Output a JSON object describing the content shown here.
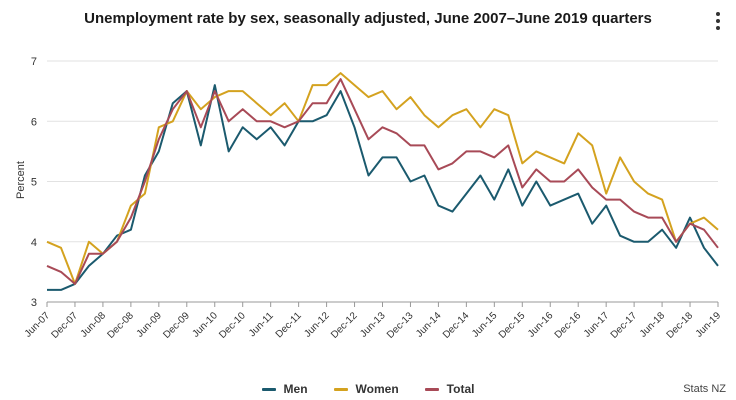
{
  "chart_data": {
    "type": "line",
    "title": "Unemployment rate by sex, seasonally adjusted, June 2007–June 2019 quarters",
    "xlabel": "",
    "ylabel": "Percent",
    "ylim": [
      3,
      7
    ],
    "yticks": [
      3,
      4,
      5,
      6,
      7
    ],
    "grid": true,
    "legend_position": "bottom",
    "x": [
      "Jun-07",
      "Sep-07",
      "Dec-07",
      "Mar-08",
      "Jun-08",
      "Sep-08",
      "Dec-08",
      "Mar-09",
      "Jun-09",
      "Sep-09",
      "Dec-09",
      "Mar-10",
      "Jun-10",
      "Sep-10",
      "Dec-10",
      "Mar-11",
      "Jun-11",
      "Sep-11",
      "Dec-11",
      "Mar-12",
      "Jun-12",
      "Sep-12",
      "Dec-12",
      "Mar-13",
      "Jun-13",
      "Sep-13",
      "Dec-13",
      "Mar-14",
      "Jun-14",
      "Sep-14",
      "Dec-14",
      "Mar-15",
      "Jun-15",
      "Sep-15",
      "Dec-15",
      "Mar-16",
      "Jun-16",
      "Sep-16",
      "Dec-16",
      "Mar-17",
      "Jun-17",
      "Sep-17",
      "Dec-17",
      "Mar-18",
      "Jun-18",
      "Sep-18",
      "Dec-18",
      "Mar-19",
      "Jun-19"
    ],
    "tick_labels": [
      "Jun-07",
      "Dec-07",
      "Jun-08",
      "Dec-08",
      "Jun-09",
      "Dec-09",
      "Jun-10",
      "Dec-10",
      "Jun-11",
      "Dec-11",
      "Jun-12",
      "Dec-12",
      "Jun-13",
      "Dec-13",
      "Jun-14",
      "Dec-14",
      "Jun-15",
      "Dec-15",
      "Jun-16",
      "Dec-16",
      "Jun-17",
      "Dec-17",
      "Jun-18",
      "Dec-18",
      "Jun-19"
    ],
    "series": [
      {
        "name": "Men",
        "color": "#1b5a6e",
        "values": [
          3.2,
          3.2,
          3.3,
          3.6,
          3.8,
          4.1,
          4.2,
          5.1,
          5.5,
          6.3,
          6.5,
          5.6,
          6.6,
          5.5,
          5.9,
          5.7,
          5.9,
          5.6,
          6.0,
          6.0,
          6.1,
          6.5,
          5.9,
          5.1,
          5.4,
          5.4,
          5.0,
          5.1,
          4.6,
          4.5,
          4.8,
          5.1,
          4.7,
          5.2,
          4.6,
          5.0,
          4.6,
          4.7,
          4.8,
          4.3,
          4.6,
          4.1,
          4.0,
          4.0,
          4.2,
          3.9,
          4.4,
          3.9,
          3.6
        ]
      },
      {
        "name": "Women",
        "color": "#d4a21f",
        "values": [
          4.0,
          3.9,
          3.3,
          4.0,
          3.8,
          4.0,
          4.6,
          4.8,
          5.9,
          6.0,
          6.5,
          6.2,
          6.4,
          6.5,
          6.5,
          6.3,
          6.1,
          6.3,
          6.0,
          6.6,
          6.6,
          6.8,
          6.6,
          6.4,
          6.5,
          6.2,
          6.4,
          6.1,
          5.9,
          6.1,
          6.2,
          5.9,
          6.2,
          6.1,
          5.3,
          5.5,
          5.4,
          5.3,
          5.8,
          5.6,
          4.8,
          5.4,
          5.0,
          4.8,
          4.7,
          4.0,
          4.3,
          4.4,
          4.2
        ]
      },
      {
        "name": "Total",
        "color": "#a84a57",
        "values": [
          3.6,
          3.5,
          3.3,
          3.8,
          3.8,
          4.0,
          4.4,
          5.0,
          5.7,
          6.2,
          6.5,
          5.9,
          6.5,
          6.0,
          6.2,
          6.0,
          6.0,
          5.9,
          6.0,
          6.3,
          6.3,
          6.7,
          6.2,
          5.7,
          5.9,
          5.8,
          5.6,
          5.6,
          5.2,
          5.3,
          5.5,
          5.5,
          5.4,
          5.6,
          4.9,
          5.2,
          5.0,
          5.0,
          5.2,
          4.9,
          4.7,
          4.7,
          4.5,
          4.4,
          4.4,
          4.0,
          4.3,
          4.2,
          3.9
        ]
      }
    ]
  },
  "menu": {
    "icon": "kebab-menu-icon"
  },
  "source": "Stats NZ"
}
